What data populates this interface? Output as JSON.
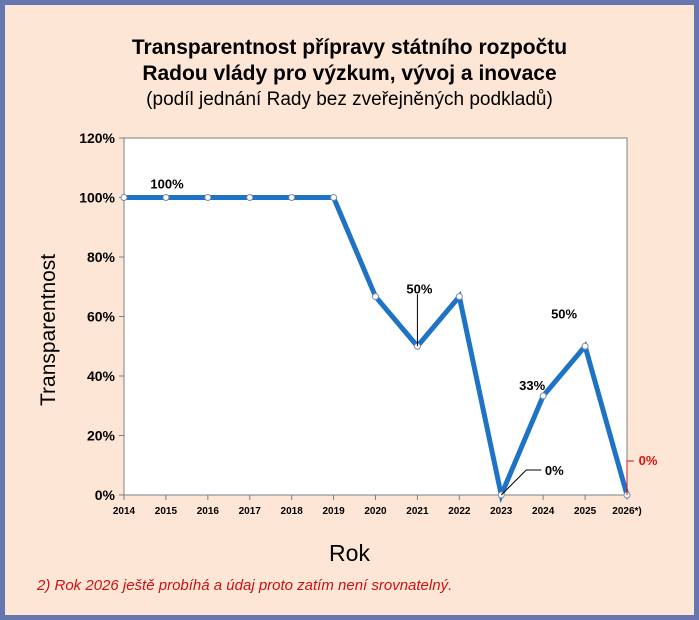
{
  "chart_data": {
    "type": "line",
    "title": "Transparentnost přípravy státního rozpočtu",
    "title_line2": "Radou vlády pro výzkum, vývoj a inovace",
    "subtitle": "(podíl jednání Rady bez zveřejněných podkladů)",
    "xlabel": "Rok",
    "ylabel": "Transparentnost",
    "categories": [
      "2014",
      "2015",
      "2016",
      "2017",
      "2018",
      "2019",
      "2020",
      "2021",
      "2022",
      "2023",
      "2024",
      "2025",
      "2026*)"
    ],
    "values": [
      100,
      100,
      100,
      100,
      100,
      100,
      66.7,
      50,
      66.7,
      0,
      33.3,
      50,
      0
    ],
    "ylim": [
      0,
      120
    ],
    "yticks": [
      "0%",
      "20%",
      "40%",
      "60%",
      "80%",
      "100%",
      "120%"
    ],
    "data_labels": [
      {
        "index": 0,
        "text": "100%",
        "color": "#000000"
      },
      {
        "index": 7,
        "text": "50%",
        "color": "#000000"
      },
      {
        "index": 9,
        "text": "0%",
        "color": "#000000"
      },
      {
        "index": 10,
        "text": "33%",
        "color": "#000000"
      },
      {
        "index": 11,
        "text": "50%",
        "color": "#000000"
      },
      {
        "index": 12,
        "text": "0%",
        "color": "#dd1111"
      }
    ],
    "line_color": "#1f73c4",
    "grid": false
  },
  "footnote": "2)  Rok 2026 ještě probíhá a údaj proto zatím není srovnatelný.",
  "colors": {
    "frame": "#6677b0",
    "background": "#fde6d6",
    "footnote": "#cc1111"
  }
}
